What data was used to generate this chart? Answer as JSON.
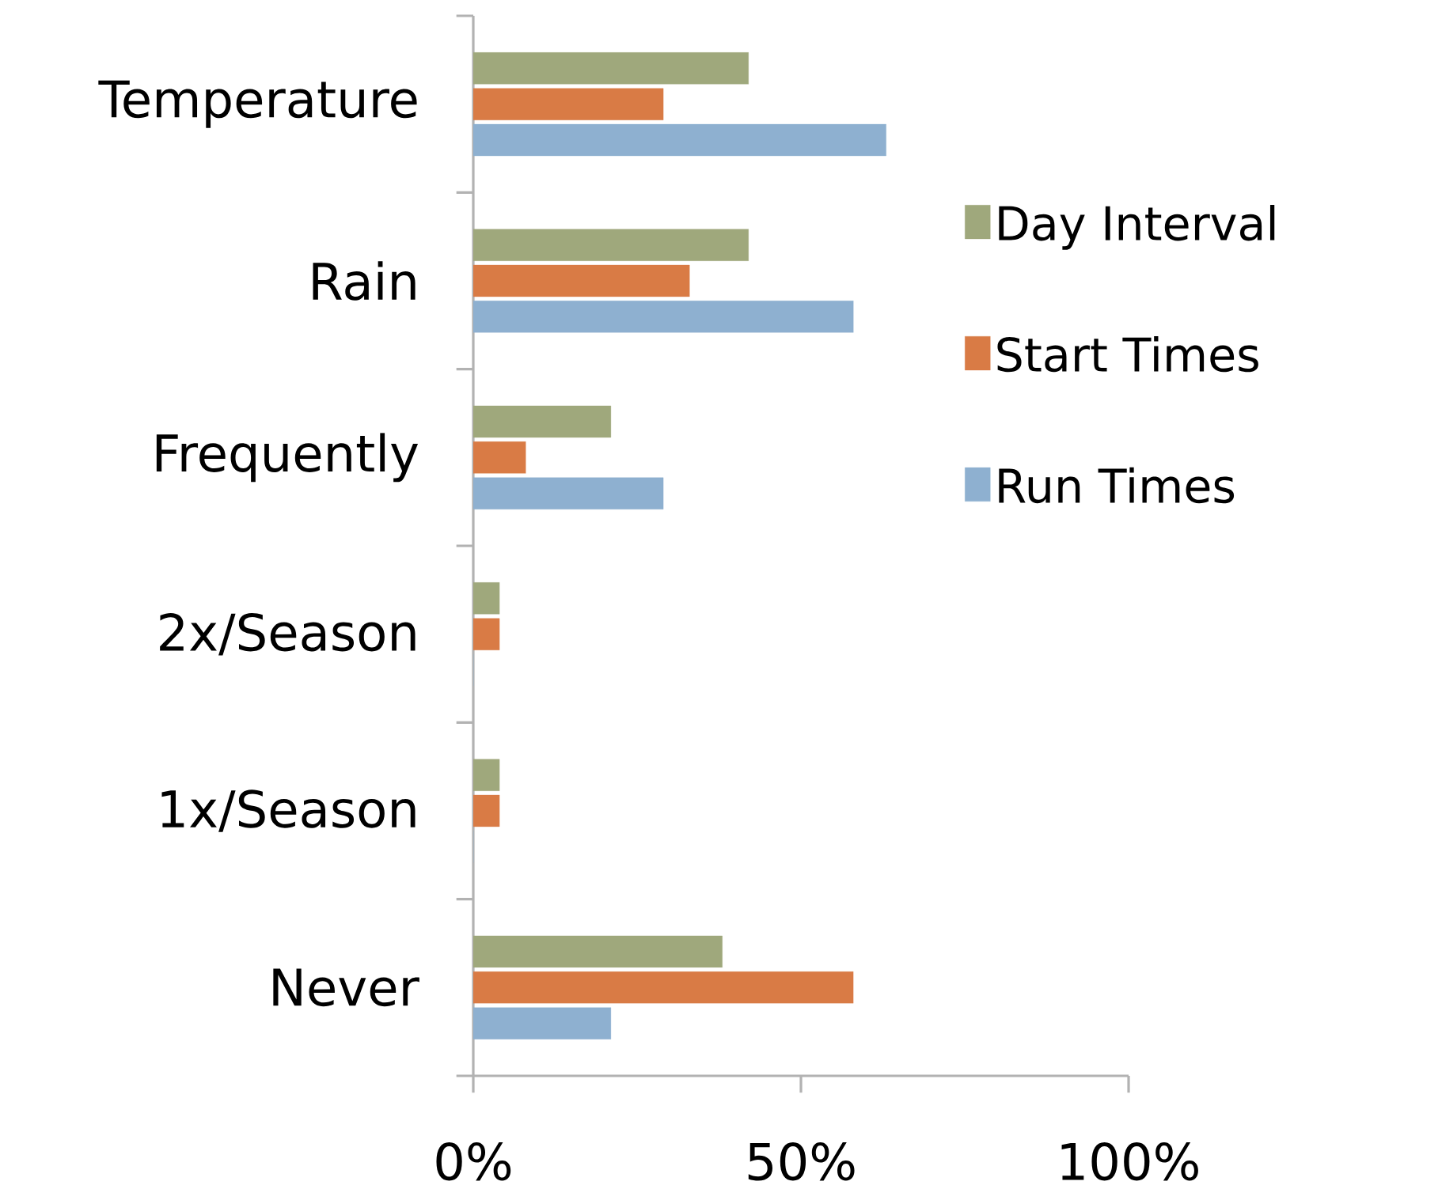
{
  "chart_data": {
    "type": "bar",
    "orientation": "horizontal",
    "categories": [
      "Temperature",
      "Rain",
      "Frequently",
      "2x/Season",
      "1x/Season",
      "Never"
    ],
    "series": [
      {
        "name": "Day Interval",
        "color": "#9fa87c",
        "values": [
          42,
          42,
          21,
          4,
          4,
          38
        ]
      },
      {
        "name": "Start Times",
        "color": "#d97b45",
        "values": [
          29,
          33,
          8,
          4,
          4,
          58
        ]
      },
      {
        "name": "Run Times",
        "color": "#8eb0d0",
        "values": [
          63,
          58,
          29,
          0,
          0,
          21
        ]
      }
    ],
    "xlim": [
      0,
      100
    ],
    "xticks": [
      {
        "value": 0,
        "label": "0%"
      },
      {
        "value": 50,
        "label": "50%"
      },
      {
        "value": 100,
        "label": "100%"
      }
    ],
    "legend": "right",
    "grid": false
  }
}
